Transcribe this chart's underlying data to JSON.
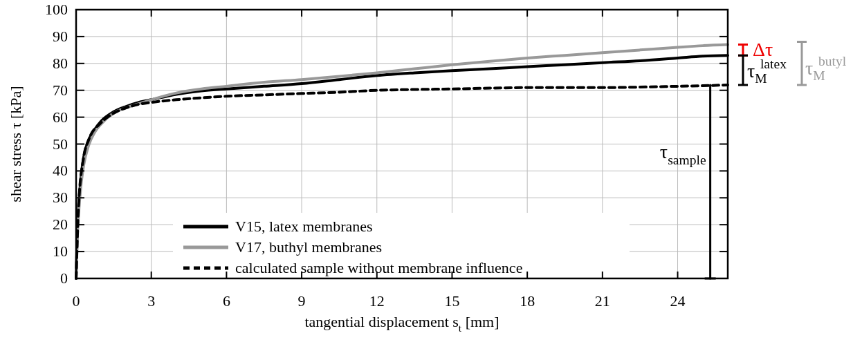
{
  "chart_data": {
    "type": "line",
    "xlabel": "tangential displacement s$_{t}$ [mm]",
    "ylabel": "shear stress τ [kPa]",
    "xlim": [
      0,
      26
    ],
    "xticks": [
      0,
      3,
      6,
      9,
      12,
      15,
      18,
      21,
      24
    ],
    "ylim": [
      0,
      100
    ],
    "yticks": [
      0,
      10,
      20,
      30,
      40,
      50,
      60,
      70,
      80,
      90,
      100
    ],
    "grid": true,
    "legend": "bottom",
    "line_style": "solid",
    "series": [
      {
        "name": "V15, latex membranes",
        "color": "#000000",
        "x": [
          0,
          0.05,
          0.1,
          0.2,
          0.3,
          0.5,
          0.75,
          1,
          1.5,
          2,
          2.5,
          3,
          4,
          5,
          6,
          7.5,
          9,
          10.5,
          12,
          13.5,
          15,
          16.5,
          18,
          19.5,
          21,
          22.5,
          24,
          25,
          26
        ],
        "values": [
          0,
          18,
          27,
          38,
          45,
          51.5,
          55.5,
          58.5,
          62,
          64,
          65.5,
          66.5,
          68.5,
          69.8,
          70.5,
          71.5,
          72.5,
          74,
          75.5,
          76.5,
          77.3,
          78,
          78.8,
          79.5,
          80.3,
          81,
          82,
          82.7,
          83
        ]
      },
      {
        "name": "V17, buthyl membranes",
        "color": "#999999",
        "x": [
          0,
          0.05,
          0.1,
          0.2,
          0.3,
          0.5,
          0.75,
          1,
          1.5,
          2,
          2.5,
          3,
          4,
          5,
          6,
          7.5,
          9,
          10.5,
          12,
          13.5,
          15,
          16.5,
          18,
          19.5,
          21,
          22.5,
          24,
          25,
          26
        ],
        "values": [
          0,
          15,
          24,
          35,
          42,
          49.5,
          54.5,
          57.5,
          61.5,
          63.5,
          65,
          66.5,
          69,
          70.5,
          71.5,
          73,
          74,
          75.2,
          76.5,
          78,
          79.5,
          80.8,
          82,
          83,
          84,
          85,
          86,
          86.6,
          87
        ]
      },
      {
        "name": "calculated sample without membrane influence",
        "color": "#000000",
        "line_style": "dashed",
        "x": [
          0,
          0.1,
          0.3,
          0.5,
          1,
          1.5,
          2,
          2.5,
          3,
          4,
          5,
          6,
          7.5,
          9,
          10.5,
          12,
          13.5,
          15,
          16.5,
          18,
          19.5,
          21,
          22.5,
          24,
          25,
          26
        ],
        "values": [
          0,
          27,
          45,
          51.5,
          58,
          61.5,
          63.5,
          64.8,
          65.5,
          66.5,
          67.2,
          67.8,
          68.3,
          68.8,
          69.3,
          70,
          70.3,
          70.5,
          70.8,
          71,
          71,
          71,
          71.2,
          71.5,
          71.7,
          72
        ]
      },
      {
        "color": "#000000",
        "x": [
          25.3,
          25.3
        ],
        "values": [
          0,
          72
        ]
      }
    ],
    "annotations": [
      "Δτ",
      "τ$_{M}$$^{latex}$",
      "τ$_{M}$$^{butyl}$",
      {
        "text": "τ$_{sample}$",
        "x": 25.3,
        "y": 72
      }
    ]
  }
}
